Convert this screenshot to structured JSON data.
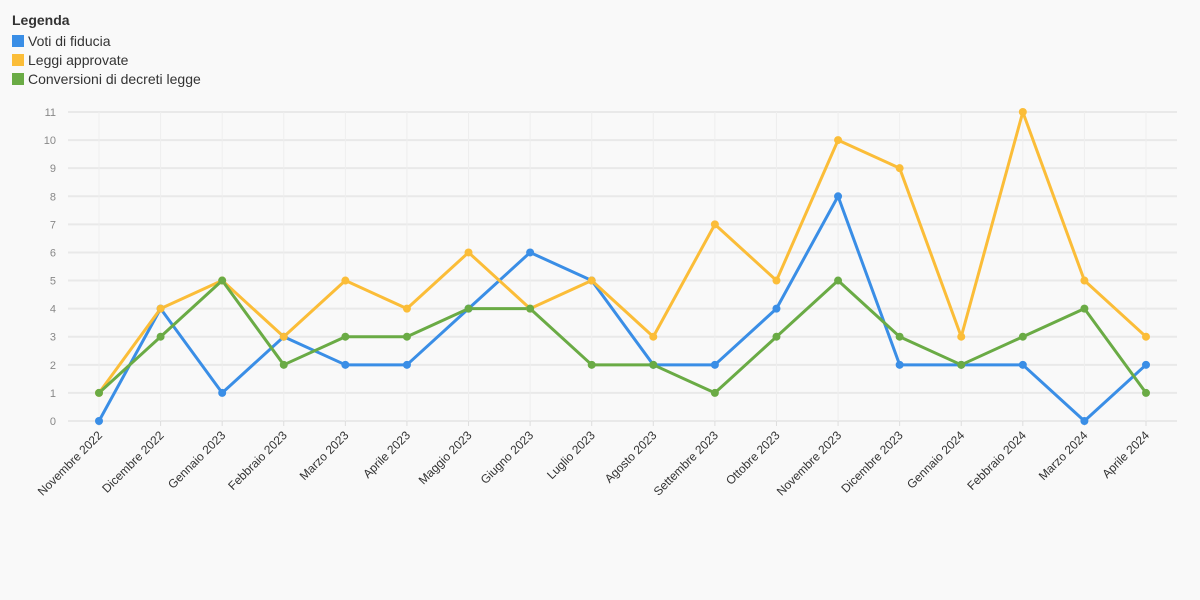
{
  "legend": {
    "title": "Legenda"
  },
  "chart_data": {
    "type": "line",
    "title": "",
    "xlabel": "",
    "ylabel": "",
    "ylim": [
      0,
      11
    ],
    "yticks": [
      0,
      1,
      2,
      3,
      4,
      5,
      6,
      7,
      8,
      9,
      10,
      11
    ],
    "grid": true,
    "legend_position": "top-left",
    "categories": [
      "Novembre 2022",
      "Dicembre 2022",
      "Gennaio 2023",
      "Febbraio 2023",
      "Marzo 2023",
      "Aprile 2023",
      "Maggio 2023",
      "Giugno 2023",
      "Luglio 2023",
      "Agosto 2023",
      "Settembre 2023",
      "Ottobre 2023",
      "Novembre 2023",
      "Dicembre 2023",
      "Gennaio 2024",
      "Febbraio 2024",
      "Marzo 2024",
      "Aprile 2024"
    ],
    "series": [
      {
        "name": "Voti di fiducia",
        "color": "#3a8ee6",
        "values": [
          0,
          4,
          1,
          3,
          2,
          2,
          4,
          6,
          5,
          2,
          2,
          4,
          8,
          2,
          2,
          2,
          0,
          2
        ]
      },
      {
        "name": "Leggi approvate",
        "color": "#fbbd38",
        "values": [
          1,
          4,
          5,
          3,
          5,
          4,
          6,
          4,
          5,
          3,
          7,
          5,
          10,
          9,
          3,
          11,
          5,
          3
        ]
      },
      {
        "name": "Conversioni di decreti legge",
        "color": "#6aab45",
        "values": [
          1,
          3,
          5,
          2,
          3,
          3,
          4,
          4,
          2,
          2,
          1,
          3,
          5,
          3,
          2,
          3,
          4,
          1
        ]
      }
    ]
  }
}
